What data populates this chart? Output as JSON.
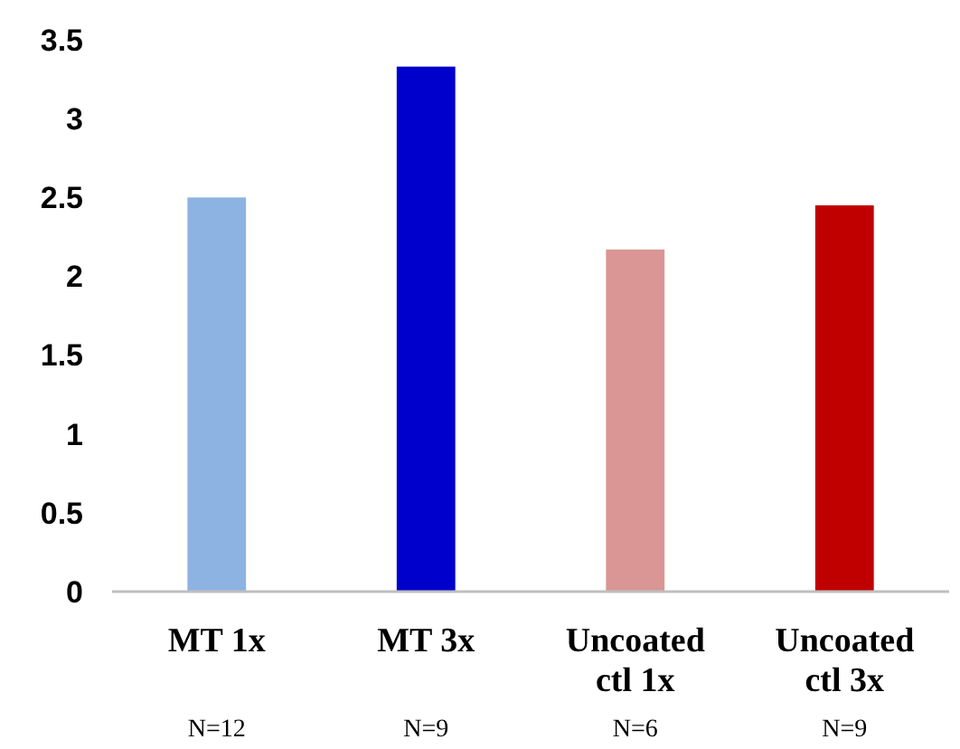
{
  "chart_data": {
    "type": "bar",
    "categories": [
      "MT 1x",
      "MT 3x",
      "Uncoated ctl 1x",
      "Uncoated ctl 3x"
    ],
    "values": [
      2.5,
      3.33,
      2.17,
      2.45
    ],
    "colors": [
      "#8db3e2",
      "#0000cc",
      "#d99694",
      "#c00000"
    ],
    "ylim": [
      0,
      3.5
    ],
    "yticks": [
      0,
      0.5,
      1,
      1.5,
      2,
      2.5,
      3,
      3.5
    ],
    "grid": false,
    "annotations": [
      "N=12",
      "N=9",
      "N=6",
      "N=9"
    ]
  }
}
